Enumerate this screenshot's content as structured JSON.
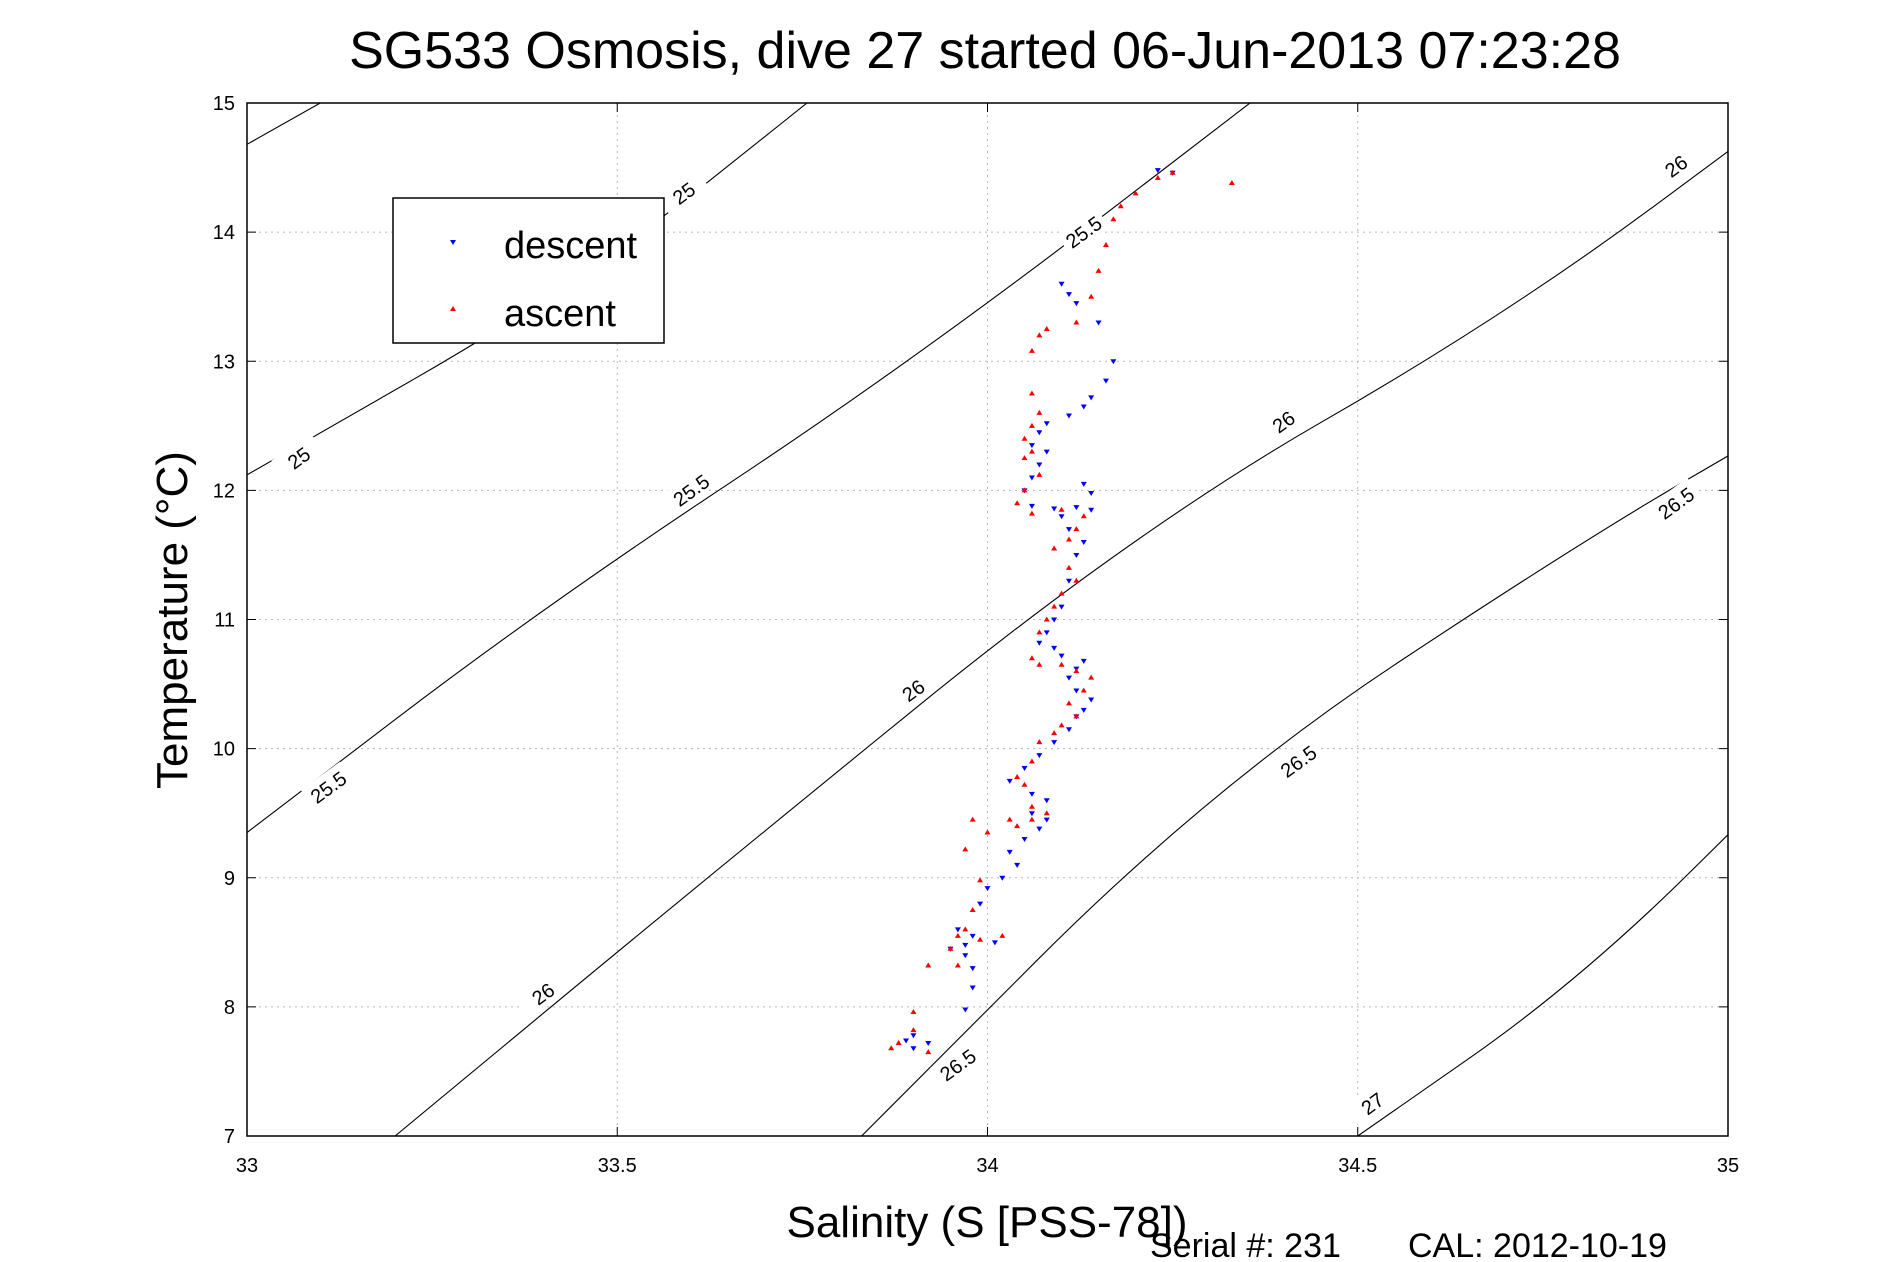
{
  "chart_data": {
    "type": "scatter",
    "title": "SG533 Osmosis, dive 27 started 06-Jun-2013 07:23:28",
    "xlabel": "Salinity (S [PSS-78])",
    "ylabel": "Temperature (°C)",
    "xlim": [
      33,
      35
    ],
    "ylim": [
      7,
      15
    ],
    "xticks": [
      "33",
      "33.5",
      "34",
      "34.5",
      "35"
    ],
    "yticks": [
      "7",
      "8",
      "9",
      "10",
      "11",
      "12",
      "13",
      "14",
      "15"
    ],
    "grid": true,
    "legend_position": "top-left",
    "colors": {
      "descent": "#0000ff",
      "ascent": "#ff0000"
    },
    "series": [
      {
        "name": "descent",
        "marker": "triangle-down",
        "color": "#0000ff",
        "points": [
          [
            34.23,
            14.48
          ],
          [
            34.25,
            14.46
          ],
          [
            34.1,
            13.6
          ],
          [
            34.11,
            13.52
          ],
          [
            34.12,
            13.45
          ],
          [
            34.15,
            13.3
          ],
          [
            34.17,
            13.0
          ],
          [
            34.16,
            12.85
          ],
          [
            34.14,
            12.72
          ],
          [
            34.13,
            12.65
          ],
          [
            34.11,
            12.58
          ],
          [
            34.08,
            12.52
          ],
          [
            34.07,
            12.45
          ],
          [
            34.06,
            12.35
          ],
          [
            34.08,
            12.3
          ],
          [
            34.07,
            12.2
          ],
          [
            34.06,
            12.1
          ],
          [
            34.05,
            12.0
          ],
          [
            34.13,
            12.05
          ],
          [
            34.14,
            11.98
          ],
          [
            34.06,
            11.88
          ],
          [
            34.09,
            11.86
          ],
          [
            34.12,
            11.87
          ],
          [
            34.14,
            11.85
          ],
          [
            34.1,
            11.8
          ],
          [
            34.11,
            11.7
          ],
          [
            34.13,
            11.6
          ],
          [
            34.12,
            11.5
          ],
          [
            34.11,
            11.3
          ],
          [
            34.1,
            11.1
          ],
          [
            34.09,
            11.0
          ],
          [
            34.08,
            10.9
          ],
          [
            34.07,
            10.82
          ],
          [
            34.09,
            10.78
          ],
          [
            34.1,
            10.72
          ],
          [
            34.13,
            10.68
          ],
          [
            34.12,
            10.62
          ],
          [
            34.11,
            10.55
          ],
          [
            34.12,
            10.45
          ],
          [
            34.14,
            10.38
          ],
          [
            34.13,
            10.3
          ],
          [
            34.12,
            10.25
          ],
          [
            34.11,
            10.15
          ],
          [
            34.09,
            10.05
          ],
          [
            34.07,
            9.95
          ],
          [
            34.05,
            9.85
          ],
          [
            34.03,
            9.75
          ],
          [
            34.06,
            9.65
          ],
          [
            34.08,
            9.6
          ],
          [
            34.06,
            9.5
          ],
          [
            34.08,
            9.45
          ],
          [
            34.07,
            9.38
          ],
          [
            34.05,
            9.3
          ],
          [
            34.03,
            9.2
          ],
          [
            34.04,
            9.1
          ],
          [
            34.02,
            9.0
          ],
          [
            34.0,
            8.92
          ],
          [
            33.99,
            8.8
          ],
          [
            33.96,
            8.6
          ],
          [
            33.98,
            8.55
          ],
          [
            34.01,
            8.5
          ],
          [
            33.97,
            8.48
          ],
          [
            33.95,
            8.45
          ],
          [
            33.97,
            8.4
          ],
          [
            33.98,
            8.3
          ],
          [
            33.98,
            8.15
          ],
          [
            33.97,
            7.98
          ],
          [
            33.92,
            7.72
          ],
          [
            33.89,
            7.74
          ],
          [
            33.9,
            7.78
          ],
          [
            33.9,
            7.68
          ]
        ]
      },
      {
        "name": "ascent",
        "marker": "triangle-up",
        "color": "#ff0000",
        "points": [
          [
            34.33,
            14.38
          ],
          [
            34.25,
            14.46
          ],
          [
            34.23,
            14.42
          ],
          [
            34.2,
            14.3
          ],
          [
            34.18,
            14.2
          ],
          [
            34.17,
            14.1
          ],
          [
            34.16,
            13.9
          ],
          [
            34.15,
            13.7
          ],
          [
            34.14,
            13.5
          ],
          [
            34.12,
            13.3
          ],
          [
            34.08,
            13.25
          ],
          [
            34.07,
            13.2
          ],
          [
            34.06,
            13.08
          ],
          [
            34.06,
            12.75
          ],
          [
            34.07,
            12.6
          ],
          [
            34.06,
            12.5
          ],
          [
            34.05,
            12.4
          ],
          [
            34.05,
            12.25
          ],
          [
            34.06,
            12.3
          ],
          [
            34.07,
            12.12
          ],
          [
            34.05,
            12.0
          ],
          [
            34.04,
            11.9
          ],
          [
            34.06,
            11.82
          ],
          [
            34.1,
            11.85
          ],
          [
            34.13,
            11.8
          ],
          [
            34.12,
            11.7
          ],
          [
            34.11,
            11.62
          ],
          [
            34.09,
            11.55
          ],
          [
            34.11,
            11.4
          ],
          [
            34.12,
            11.3
          ],
          [
            34.1,
            11.2
          ],
          [
            34.09,
            11.1
          ],
          [
            34.08,
            11.0
          ],
          [
            34.07,
            10.9
          ],
          [
            34.06,
            10.7
          ],
          [
            34.07,
            10.65
          ],
          [
            34.1,
            10.65
          ],
          [
            34.12,
            10.6
          ],
          [
            34.14,
            10.55
          ],
          [
            34.13,
            10.45
          ],
          [
            34.11,
            10.35
          ],
          [
            34.12,
            10.25
          ],
          [
            34.1,
            10.18
          ],
          [
            34.09,
            10.12
          ],
          [
            34.07,
            10.05
          ],
          [
            34.06,
            9.9
          ],
          [
            34.04,
            9.78
          ],
          [
            34.05,
            9.72
          ],
          [
            34.06,
            9.55
          ],
          [
            34.08,
            9.5
          ],
          [
            34.06,
            9.45
          ],
          [
            34.04,
            9.4
          ],
          [
            34.03,
            9.45
          ],
          [
            34.0,
            9.35
          ],
          [
            33.98,
            9.45
          ],
          [
            33.97,
            9.22
          ],
          [
            33.99,
            8.98
          ],
          [
            33.98,
            8.75
          ],
          [
            33.97,
            8.6
          ],
          [
            33.96,
            8.55
          ],
          [
            33.99,
            8.52
          ],
          [
            34.02,
            8.55
          ],
          [
            33.95,
            8.45
          ],
          [
            33.92,
            8.32
          ],
          [
            33.96,
            8.32
          ],
          [
            33.9,
            7.96
          ],
          [
            33.9,
            7.82
          ],
          [
            33.88,
            7.72
          ],
          [
            33.87,
            7.68
          ],
          [
            33.92,
            7.65
          ]
        ]
      }
    ],
    "contours": [
      {
        "level": "25",
        "points": [
          [
            33,
            14.68
          ],
          [
            33.3,
            15.65
          ]
        ],
        "labels": [
          [
            33.59,
            14.3
          ]
        ]
      },
      {
        "level": "25",
        "points": [
          [
            33,
            12.12
          ],
          [
            33.45,
            13.6
          ],
          [
            33.8,
            15.2
          ]
        ],
        "labels": [
          [
            33.07,
            12.25
          ]
        ]
      },
      {
        "level": "25.5",
        "points": [
          [
            33,
            9.35
          ],
          [
            33.4,
            11.1
          ],
          [
            33.9,
            13.0
          ],
          [
            34.4,
            15.2
          ]
        ],
        "labels": [
          [
            33.6,
            12.0
          ],
          [
            34.13,
            14.0
          ]
        ]
      },
      {
        "level": "25.5",
        "points": [
          [
            33,
            9.35
          ]
        ],
        "labels": [
          [
            33.11,
            9.7
          ]
        ]
      },
      {
        "level": "26",
        "points": [
          [
            33.2,
            7.0
          ],
          [
            33.6,
            8.9
          ],
          [
            34.2,
            11.7
          ],
          [
            34.7,
            13.35
          ],
          [
            35.1,
            15.05
          ]
        ],
        "labels": [
          [
            33.4,
            8.1
          ],
          [
            33.9,
            10.45
          ],
          [
            34.4,
            12.53
          ],
          [
            34.93,
            14.51
          ]
        ]
      },
      {
        "level": "26.5",
        "points": [
          [
            33.83,
            7.0
          ],
          [
            34.3,
            9.7
          ],
          [
            34.8,
            11.6
          ],
          [
            35.1,
            12.6
          ]
        ],
        "labels": [
          [
            33.96,
            7.55
          ],
          [
            34.42,
            9.9
          ],
          [
            34.93,
            11.9
          ]
        ]
      },
      {
        "level": "27",
        "points": [
          [
            34.5,
            7.0
          ],
          [
            34.8,
            8.2
          ],
          [
            35.1,
            9.9
          ]
        ],
        "labels": [
          [
            34.52,
            7.25
          ]
        ]
      }
    ],
    "legend": [
      {
        "label": "descent",
        "marker": "triangle-down",
        "color": "#0000ff"
      },
      {
        "label": "ascent",
        "marker": "triangle-up",
        "color": "#ff0000"
      }
    ]
  },
  "footer": {
    "serial": "Serial #: 231",
    "cal": "CAL: 2012-10-19"
  }
}
